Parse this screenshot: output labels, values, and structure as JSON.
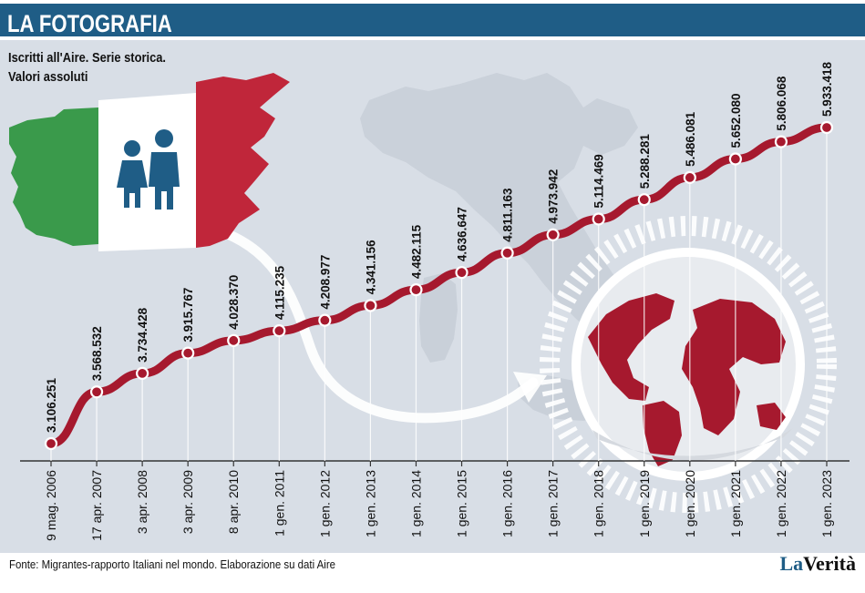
{
  "header": {
    "title": "LA FOTOGRAFIA"
  },
  "subtitle": {
    "line1": "Iscritti all'Aire. Serie storica.",
    "line2": "Valori assoluti"
  },
  "colors": {
    "header_bg": "#1f5d86",
    "panel_bg": "#d8dee6",
    "line": "#a6192e",
    "flag_green": "#3a9a4b",
    "flag_red": "#c0263a",
    "map": "#c9d0d9"
  },
  "icons": [
    "people-icon",
    "italy-map-icon",
    "globe-icon",
    "arrow-icon"
  ],
  "chart_data": {
    "type": "line",
    "title": "Iscritti all'Aire. Serie storica. Valori assoluti",
    "xlabel": "",
    "ylabel": "",
    "ylim": [
      3000000,
      6000000
    ],
    "categories": [
      "9 mag. 2006",
      "17 apr. 2007",
      "3 apr. 2008",
      "3 apr. 2009",
      "8 apr. 2010",
      "1 gen. 2011",
      "1 gen. 2012",
      "1 gen. 2013",
      "1 gen. 2014",
      "1 gen. 2015",
      "1 gen. 2016",
      "1 gen. 2017",
      "1 gen. 2018",
      "1 gen. 2019",
      "1 gen. 2020",
      "1 gen. 2021",
      "1 gen. 2022",
      "1 gen. 2023"
    ],
    "values": [
      3106251,
      3568532,
      3734428,
      3915767,
      4028370,
      4115235,
      4208977,
      4341156,
      4482115,
      4636647,
      4811163,
      4973942,
      5114469,
      5288281,
      5486081,
      5652080,
      5806068,
      5933418
    ],
    "labels": [
      "3.106.251",
      "3.568.532",
      "3.734.428",
      "3.915.767",
      "4.028.370",
      "4.115.235",
      "4.208.977",
      "4.341.156",
      "4.482.115",
      "4.636.647",
      "4.811.163",
      "4.973.942",
      "5.114.469",
      "5.288.281",
      "5.486.081",
      "5.652.080",
      "5.806.068",
      "5.933.418"
    ],
    "grid": false
  },
  "footer": {
    "source": "Fonte: Migrantes-rapporto Italiani nel mondo. Elaborazione su dati Aire",
    "brand_la": "La",
    "brand_verita": "Verità"
  }
}
